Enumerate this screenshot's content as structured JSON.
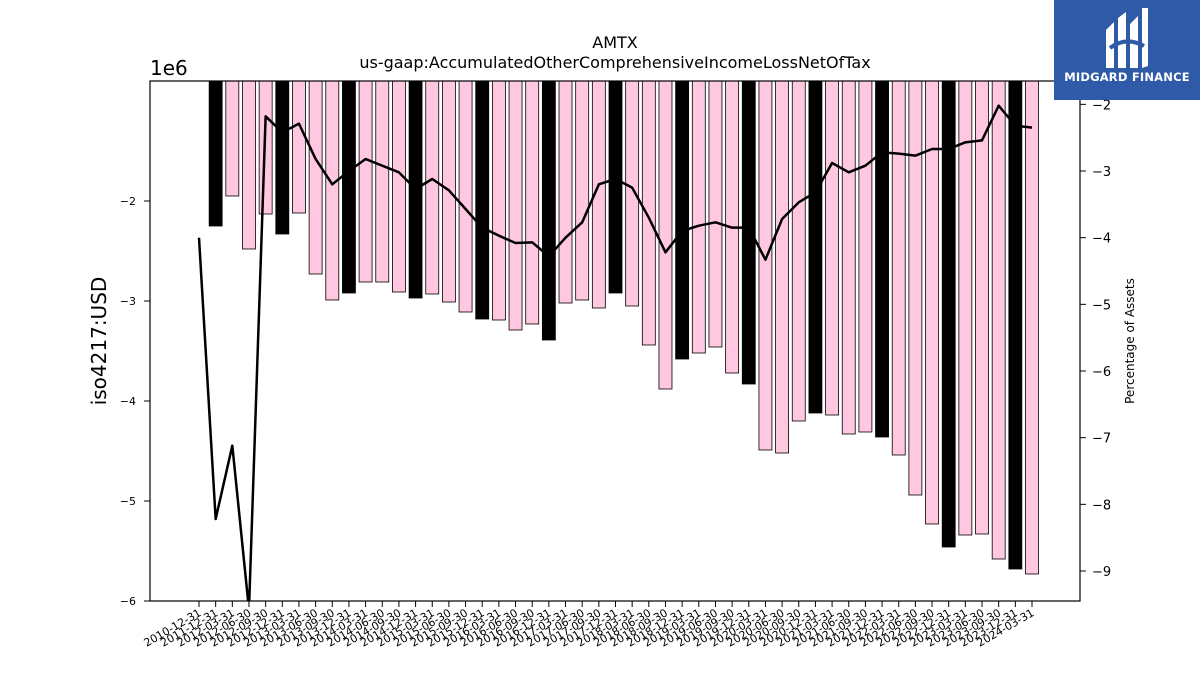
{
  "chart_data": {
    "type": "bar",
    "title": "AMTX",
    "subtitle": "us-gaap:AccumulatedOtherComprehensiveIncomeLossNetOfTax",
    "ylabel": "iso4217:USD",
    "y2label": "Percentage of Assets",
    "y_multiplier": "1e6",
    "ylim": [
      -6000000,
      -800000
    ],
    "y2lim": [
      -9.45,
      -1.65
    ],
    "yticks": [
      -2,
      -3,
      -4,
      -5,
      -6
    ],
    "y2ticks": [
      -2,
      -3,
      -4,
      -5,
      -6,
      -7,
      -8,
      -9
    ],
    "categories": [
      "2010-12-31",
      "2011-12-31",
      "2012-03-31",
      "2012-06-30",
      "2012-09-30",
      "2012-12-31",
      "2013-03-31",
      "2013-06-30",
      "2013-09-30",
      "2013-12-31",
      "2014-03-31",
      "2014-06-30",
      "2014-09-30",
      "2014-12-31",
      "2015-03-31",
      "2015-06-30",
      "2015-09-30",
      "2015-12-31",
      "2016-03-31",
      "2016-06-30",
      "2016-09-30",
      "2016-12-31",
      "2017-03-31",
      "2017-06-30",
      "2017-09-30",
      "2017-12-31",
      "2018-03-31",
      "2018-06-30",
      "2018-09-30",
      "2018-12-31",
      "2019-03-31",
      "2019-06-30",
      "2019-09-30",
      "2019-12-31",
      "2020-03-31",
      "2020-06-30",
      "2020-09-30",
      "2020-12-31",
      "2021-03-31",
      "2021-06-30",
      "2021-09-30",
      "2021-12-31",
      "2022-03-31",
      "2022-06-30",
      "2022-09-30",
      "2022-12-31",
      "2023-03-31",
      "2023-06-30",
      "2023-09-30",
      "2023-12-31",
      "2024-03-31"
    ],
    "tick_labels": [
      "2010-12-31",
      "2011-12-31",
      "2012-03-31",
      "2012-06-30",
      "2012-09-30",
      "2012-12-31",
      "2013-03-31",
      "2013-06-30",
      "2013-09-30",
      "2013-12-31",
      "2014-03-31",
      "2014-06-30",
      "2014-09-30",
      "2014-12-31",
      "2015-03-31",
      "2015-06-30",
      "2015-09-30",
      "2015-12-31",
      "2016-03-31",
      "2016-06-30",
      "2016-09-30",
      "2016-12-31",
      "2017-03-31",
      "2017-06-30",
      "2017-09-30",
      "2017-12-31",
      "2018-03-31",
      "2018-06-30",
      "2018-09-30",
      "2018-12-31",
      "2019-03-31",
      "2019-06-30",
      "2019-09-30",
      "2019-12-31",
      "2020-03-31",
      "2020-06-30",
      "2020-09-30",
      "2020-12-31",
      "2021-03-31",
      "2021-06-30",
      "2021-09-30",
      "2021-12-31",
      "2022-03-31",
      "2022-06-30",
      "2022-09-30",
      "2022-12-31",
      "2023-03-31",
      "2023-06-30",
      "2023-09-30",
      "2023-12-31",
      "2024-03-31"
    ],
    "values": [
      null,
      -2250000,
      -1950000,
      -2480000,
      -2130000,
      -2330000,
      -2120000,
      -2730000,
      -2990000,
      -2920000,
      -2810000,
      -2810000,
      -2910000,
      -2970000,
      -2930000,
      -3010000,
      -3110000,
      -3180000,
      -3190000,
      -3290000,
      -3230000,
      -3390000,
      -3020000,
      -2990000,
      -3070000,
      -2920000,
      -3050000,
      -3440000,
      -3880000,
      -3580000,
      -3520000,
      -3460000,
      -3720000,
      -3830000,
      -4490000,
      -4520000,
      -4200000,
      -4120000,
      -4140000,
      -4330000,
      -4310000,
      -4360000,
      -4540000,
      -4940000,
      -5230000,
      -5460000,
      -5340000,
      -5330000,
      -5580000,
      -5680000,
      -5730000
    ],
    "annual_flags": [
      1,
      1,
      0,
      0,
      0,
      1,
      0,
      0,
      0,
      1,
      0,
      0,
      0,
      1,
      0,
      0,
      0,
      1,
      0,
      0,
      0,
      1,
      0,
      0,
      0,
      1,
      0,
      0,
      0,
      1,
      0,
      0,
      0,
      1,
      0,
      0,
      0,
      1,
      0,
      0,
      0,
      1,
      0,
      0,
      0,
      1,
      0,
      0,
      0,
      1,
      0
    ],
    "pct_assets": [
      -4.0,
      -8.22,
      -7.12,
      -9.58,
      -2.18,
      -2.42,
      -2.29,
      -2.82,
      -3.2,
      -3.0,
      -2.82,
      -2.92,
      -3.02,
      -3.27,
      -3.12,
      -3.29,
      -3.57,
      -3.85,
      -3.97,
      -4.08,
      -4.07,
      -4.28,
      -4.0,
      -3.77,
      -3.2,
      -3.12,
      -3.25,
      -3.7,
      -4.22,
      -3.9,
      -3.82,
      -3.77,
      -3.85,
      -3.85,
      -4.33,
      -3.72,
      -3.47,
      -3.32,
      -2.88,
      -3.02,
      -2.92,
      -2.72,
      -2.74,
      -2.77,
      -2.67,
      -2.67,
      -2.57,
      -2.54,
      -2.02,
      -2.32,
      -2.35
    ],
    "colors": {
      "quarter_bar": "#ffc8e0",
      "annual_bar": "#000000",
      "line": "#000000",
      "bar_edge": "#000000"
    },
    "grid": false,
    "legend": "none"
  },
  "logo": {
    "text": "MIDGARD FINANCE"
  }
}
